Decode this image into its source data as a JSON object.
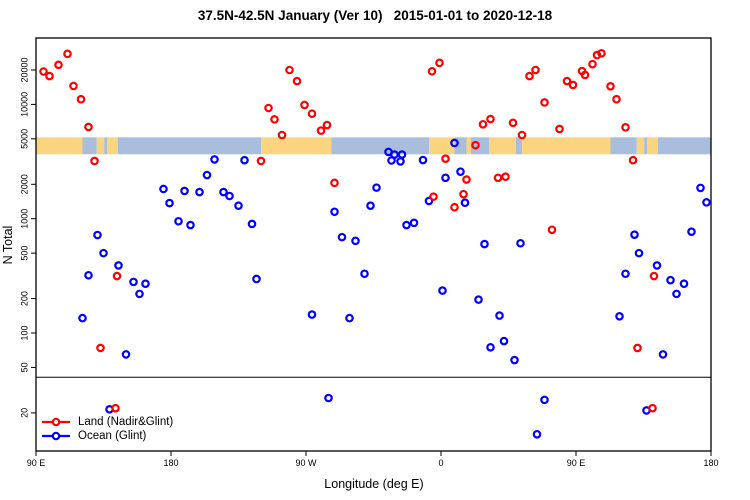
{
  "title": "37.5N-42.5N January (Ver 10)   2015-01-01 to 2020-12-18",
  "legend": {
    "items": [
      {
        "label": "Land (Nadir&Glint)",
        "color": "#ff0000"
      },
      {
        "label": "Ocean (Glint)",
        "color": "#0000ff"
      }
    ]
  },
  "chart_data": {
    "type": "scatter",
    "title": "37.5N-42.5N January (Ver 10)   2015-01-01 to 2020-12-18",
    "xlabel": "Longitude (deg E)",
    "ylabel": "N Total",
    "x_axis": {
      "note": "longitude axis starts at 90E and wraps eastward past the dateline; 90E-180 range is shown twice",
      "range_deg": [
        90,
        540
      ],
      "ticks": [
        {
          "pos": 90,
          "label": "90 E"
        },
        {
          "pos": 180,
          "label": "180"
        },
        {
          "pos": 270,
          "label": "90 W"
        },
        {
          "pos": 360,
          "label": "0"
        },
        {
          "pos": 450,
          "label": "90 E"
        },
        {
          "pos": 540,
          "label": "180"
        }
      ]
    },
    "y_axis": {
      "scale": "log",
      "range": [
        9.3,
        38000
      ],
      "ticks": [
        20,
        50,
        100,
        200,
        500,
        1000,
        2000,
        5000,
        10000,
        20000
      ]
    },
    "grid": false,
    "legend_position": "bottom-left-inside",
    "reference_line_n": 41,
    "surface_band": {
      "note": "horizontal strip at N~4300 showing land(orange)/ocean(blue) along 37.5N-42.5N",
      "n_center": 4300,
      "land_color": "#fad47e",
      "ocean_color": "#a8bedc",
      "segments": [
        {
          "from": 90,
          "to": 121,
          "type": "land"
        },
        {
          "from": 121,
          "to": 130.5,
          "type": "ocean"
        },
        {
          "from": 130.5,
          "to": 135.5,
          "type": "land"
        },
        {
          "from": 135.5,
          "to": 137.5,
          "type": "ocean"
        },
        {
          "from": 137.5,
          "to": 144.5,
          "type": "land"
        },
        {
          "from": 144.5,
          "to": 240,
          "type": "ocean"
        },
        {
          "from": 240,
          "to": 287,
          "type": "land"
        },
        {
          "from": 287,
          "to": 352,
          "type": "ocean"
        },
        {
          "from": 352,
          "to": 369,
          "type": "land"
        },
        {
          "from": 369,
          "to": 377,
          "type": "ocean"
        },
        {
          "from": 377,
          "to": 380,
          "type": "land"
        },
        {
          "from": 380,
          "to": 392,
          "type": "ocean"
        },
        {
          "from": 392,
          "to": 410,
          "type": "land"
        },
        {
          "from": 410,
          "to": 414,
          "type": "ocean"
        },
        {
          "from": 414,
          "to": 473,
          "type": "land"
        },
        {
          "from": 473,
          "to": 490.5,
          "type": "ocean"
        },
        {
          "from": 490.5,
          "to": 495.5,
          "type": "land"
        },
        {
          "from": 495.5,
          "to": 497.5,
          "type": "ocean"
        },
        {
          "from": 497.5,
          "to": 504.5,
          "type": "land"
        },
        {
          "from": 504.5,
          "to": 540,
          "type": "ocean"
        }
      ]
    },
    "series": [
      {
        "name": "Land (Nadir&Glint)",
        "color": "#ff0000",
        "points": [
          [
            95,
            19400
          ],
          [
            99,
            17700
          ],
          [
            105,
            22200
          ],
          [
            111,
            27700
          ],
          [
            115,
            14500
          ],
          [
            120,
            11100
          ],
          [
            125,
            6350
          ],
          [
            129,
            3200
          ],
          [
            133,
            74
          ],
          [
            143,
            22
          ],
          [
            144,
            315
          ],
          [
            240,
            3200
          ],
          [
            245,
            9300
          ],
          [
            249,
            7400
          ],
          [
            254,
            5400
          ],
          [
            259,
            20000
          ],
          [
            264,
            16000
          ],
          [
            269,
            9900
          ],
          [
            274,
            8300
          ],
          [
            280,
            5900
          ],
          [
            284,
            6600
          ],
          [
            289,
            2060
          ],
          [
            354,
            19500
          ],
          [
            359,
            23100
          ],
          [
            355,
            1560
          ],
          [
            363,
            3350
          ],
          [
            369,
            1260
          ],
          [
            375,
            1640
          ],
          [
            377,
            2200
          ],
          [
            383,
            4400
          ],
          [
            388,
            6700
          ],
          [
            393,
            7450
          ],
          [
            398,
            2280
          ],
          [
            403,
            2330
          ],
          [
            408,
            6900
          ],
          [
            414,
            5400
          ],
          [
            419,
            17700
          ],
          [
            423,
            20000
          ],
          [
            429,
            10400
          ],
          [
            434,
            800
          ],
          [
            439,
            6100
          ],
          [
            444,
            16000
          ],
          [
            448,
            14800
          ],
          [
            454,
            19600
          ],
          [
            456,
            18100
          ],
          [
            461,
            22500
          ],
          [
            464,
            27000
          ],
          [
            467,
            28000
          ],
          [
            473,
            14400
          ],
          [
            477,
            11100
          ],
          [
            483,
            6300
          ],
          [
            488,
            3250
          ],
          [
            491,
            74
          ],
          [
            501,
            22
          ],
          [
            502,
            315
          ]
        ]
      },
      {
        "name": "Ocean (Glint)",
        "color": "#0000ff",
        "points": [
          [
            175,
            1820
          ],
          [
            179,
            1370
          ],
          [
            185,
            950
          ],
          [
            189,
            1750
          ],
          [
            193,
            880
          ],
          [
            199,
            1710
          ],
          [
            204,
            2410
          ],
          [
            209,
            3300
          ],
          [
            215,
            1710
          ],
          [
            219,
            1580
          ],
          [
            225,
            1300
          ],
          [
            229,
            3250
          ],
          [
            234,
            900
          ],
          [
            237,
            297
          ],
          [
            274,
            145
          ],
          [
            285,
            27
          ],
          [
            289,
            1150
          ],
          [
            294,
            690
          ],
          [
            299,
            135
          ],
          [
            303,
            640
          ],
          [
            309,
            330
          ],
          [
            313,
            1300
          ],
          [
            317,
            1870
          ],
          [
            325,
            3840
          ],
          [
            327,
            3230
          ],
          [
            329,
            3640
          ],
          [
            333,
            3170
          ],
          [
            334,
            3640
          ],
          [
            337,
            880
          ],
          [
            342,
            920
          ],
          [
            348,
            3260
          ],
          [
            352,
            1430
          ],
          [
            361,
            235
          ],
          [
            363,
            2280
          ],
          [
            369,
            4600
          ],
          [
            373,
            2580
          ],
          [
            376,
            1380
          ],
          [
            385,
            196
          ],
          [
            389,
            600
          ],
          [
            393,
            75
          ],
          [
            399,
            142
          ],
          [
            402,
            85
          ],
          [
            409,
            58
          ],
          [
            413,
            610
          ],
          [
            424,
            13
          ],
          [
            429,
            26
          ],
          [
            479,
            140
          ],
          [
            483,
            330
          ],
          [
            489,
            725
          ],
          [
            492,
            500
          ],
          [
            497,
            21
          ],
          [
            504,
            390
          ],
          [
            508,
            65
          ],
          [
            513,
            290
          ],
          [
            517,
            220
          ],
          [
            522,
            270
          ],
          [
            527,
            770
          ],
          [
            533,
            1860
          ],
          [
            537,
            1390
          ],
          [
            121,
            135
          ],
          [
            125,
            320
          ],
          [
            131,
            720
          ],
          [
            135,
            500
          ],
          [
            139,
            21.5
          ],
          [
            145,
            390
          ],
          [
            150,
            65
          ],
          [
            155,
            280
          ],
          [
            159,
            220
          ],
          [
            163,
            270
          ]
        ]
      }
    ]
  }
}
